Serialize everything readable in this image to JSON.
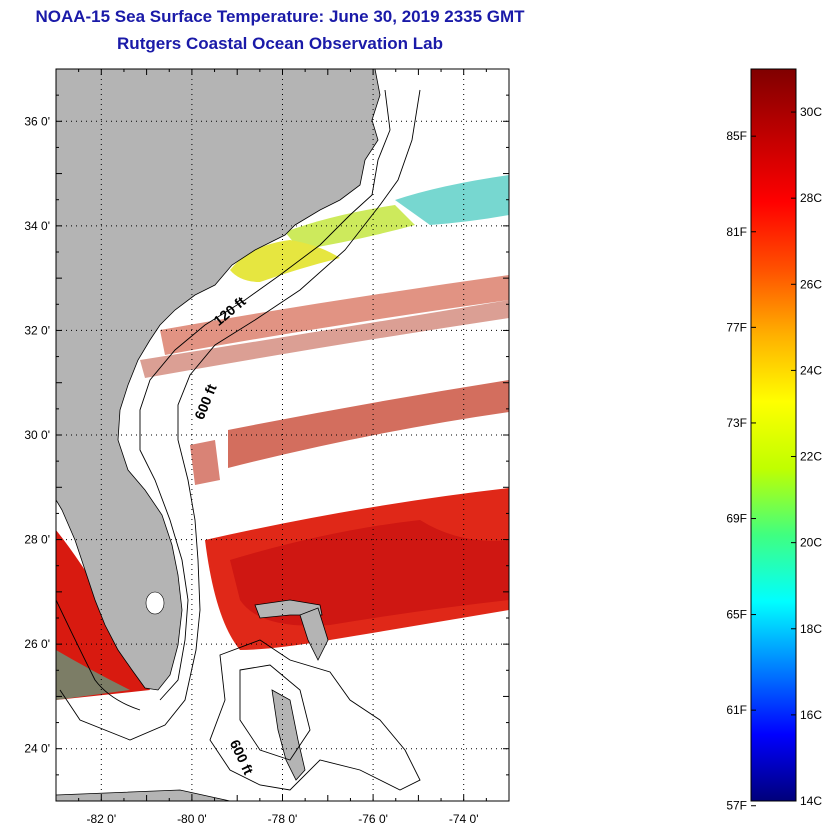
{
  "title": "NOAA-15 Sea Surface Temperature:  June 30, 2019 2335 GMT",
  "subtitle": "Rutgers Coastal Ocean Observation Lab",
  "map": {
    "lon_range": [
      -83,
      -73
    ],
    "lat_range": [
      23,
      37
    ],
    "lat_ticks": [
      {
        "value": 24,
        "label": "24 0'"
      },
      {
        "value": 26,
        "label": "26 0'"
      },
      {
        "value": 28,
        "label": "28 0'"
      },
      {
        "value": 30,
        "label": "30 0'"
      },
      {
        "value": 32,
        "label": "32 0'"
      },
      {
        "value": 34,
        "label": "34 0'"
      },
      {
        "value": 36,
        "label": "36 0'"
      }
    ],
    "lon_ticks": [
      {
        "value": -82,
        "label": "-82 0'"
      },
      {
        "value": -80,
        "label": "-80 0'"
      },
      {
        "value": -78,
        "label": "-78 0'"
      },
      {
        "value": -76,
        "label": "-76 0'"
      },
      {
        "value": -74,
        "label": "-74 0'"
      }
    ],
    "grid": "dotted",
    "land_color": "#b4b4b4",
    "contour_labels": [
      {
        "text": "120 ft",
        "lon": -79.1,
        "lat": 32.3,
        "angle": -40
      },
      {
        "text": "600 ft",
        "lon": -79.6,
        "lat": 30.6,
        "angle": -68
      },
      {
        "text": "600 ft",
        "lon": -79.0,
        "lat": 23.8,
        "angle": 65
      }
    ]
  },
  "colorbar": {
    "min_c": 14,
    "max_c": 31,
    "celsius_ticks": [
      {
        "value": 14,
        "label": "14C"
      },
      {
        "value": 16,
        "label": "16C"
      },
      {
        "value": 18,
        "label": "18C"
      },
      {
        "value": 20,
        "label": "20C"
      },
      {
        "value": 22,
        "label": "22C"
      },
      {
        "value": 24,
        "label": "24C"
      },
      {
        "value": 26,
        "label": "26C"
      },
      {
        "value": 28,
        "label": "28C"
      },
      {
        "value": 30,
        "label": "30C"
      }
    ],
    "fahrenheit_ticks": [
      {
        "value": 13.89,
        "label": "57F"
      },
      {
        "value": 16.11,
        "label": "61F"
      },
      {
        "value": 18.33,
        "label": "65F"
      },
      {
        "value": 20.56,
        "label": "69F"
      },
      {
        "value": 22.78,
        "label": "73F"
      },
      {
        "value": 25.0,
        "label": "77F"
      },
      {
        "value": 27.22,
        "label": "81F"
      },
      {
        "value": 29.44,
        "label": "85F"
      }
    ],
    "colors": [
      "#00007a",
      "#0000ff",
      "#0080ff",
      "#00ffff",
      "#40ff80",
      "#c0ff00",
      "#ffff00",
      "#ffb000",
      "#ff5000",
      "#ff0000",
      "#c00000",
      "#800000"
    ]
  }
}
